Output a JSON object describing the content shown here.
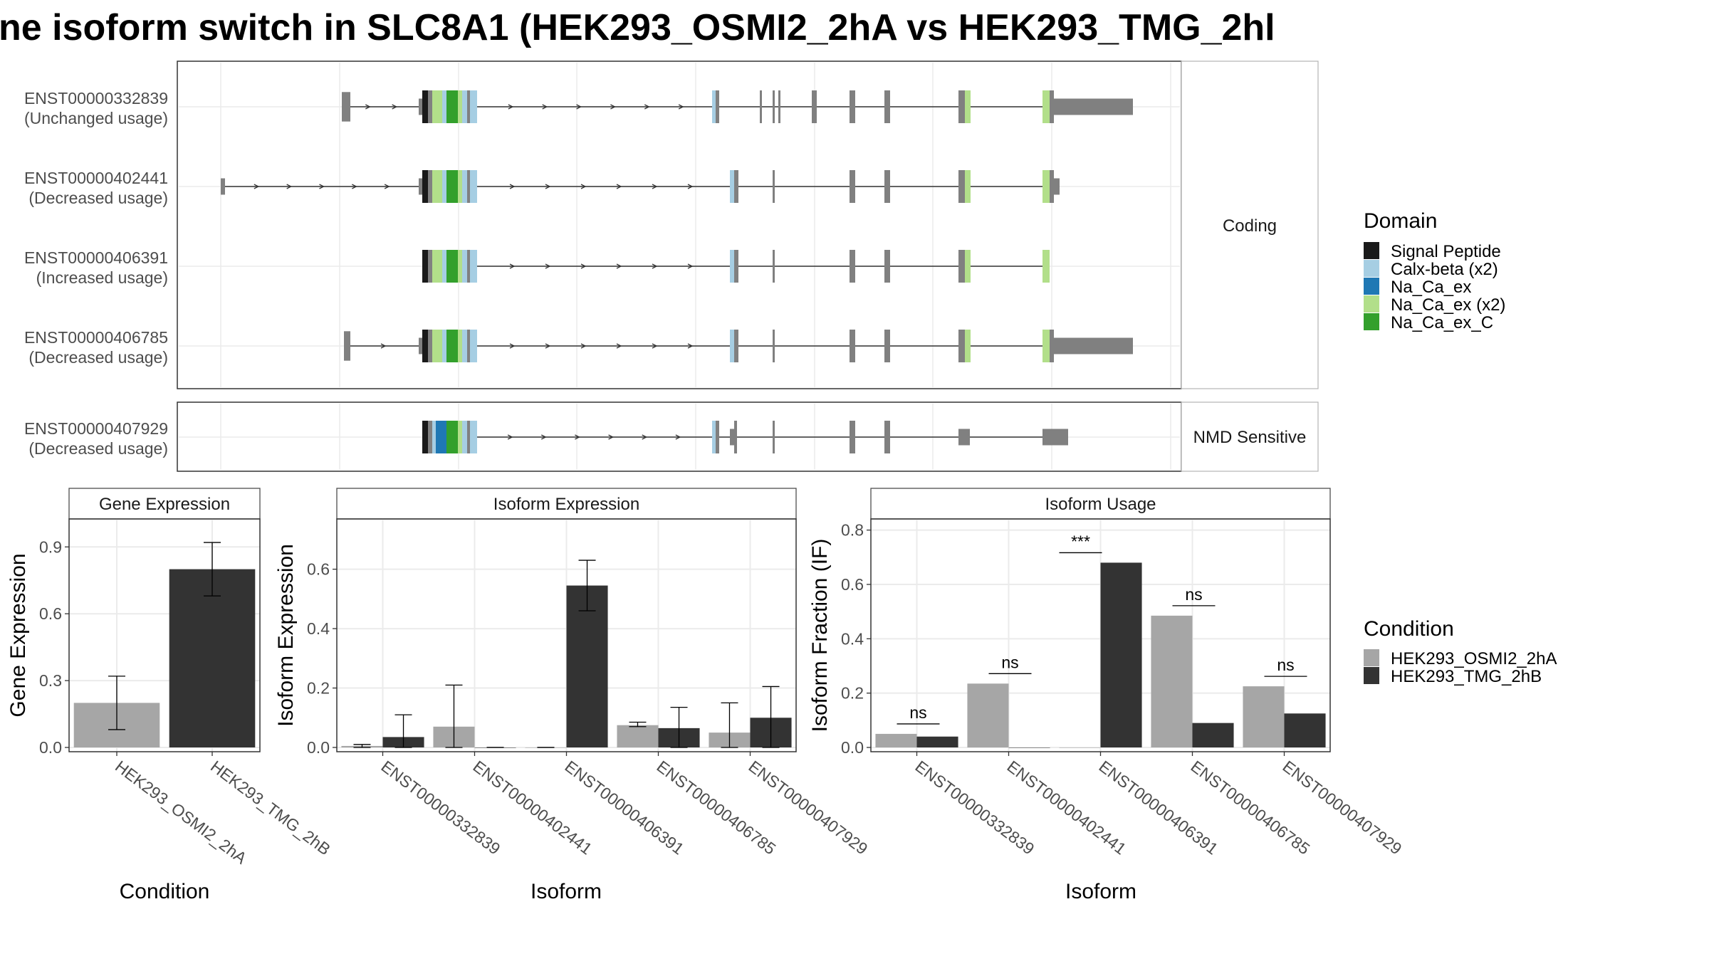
{
  "title": "ne isoform switch in SLC8A1 (HEK293_OSMI2_2hA vs HEK293_TMG_2hl",
  "colors": {
    "signal_peptide": "#1a1a1a",
    "calx_beta": "#a6cee3",
    "na_ca_ex": "#1f78b4",
    "na_ca_ex_x2": "#b2df8a",
    "na_ca_ex_c": "#33a02c",
    "exon": "#808080",
    "cond1": "#a6a6a6",
    "cond2": "#333333"
  },
  "transcripts": {
    "coding_label": "Coding",
    "nmd_label": "NMD Sensitive",
    "rows": [
      {
        "id": "ENST00000332839",
        "usage": "(Unchanged usage)",
        "group": "coding"
      },
      {
        "id": "ENST00000402441",
        "usage": "(Decreased usage)",
        "group": "coding"
      },
      {
        "id": "ENST00000406391",
        "usage": "(Increased usage)",
        "group": "coding"
      },
      {
        "id": "ENST00000406785",
        "usage": "(Decreased usage)",
        "group": "coding"
      },
      {
        "id": "ENST00000407929",
        "usage": "(Decreased usage)",
        "group": "nmd"
      }
    ]
  },
  "legend_domain": {
    "title": "Domain",
    "items": [
      "Signal Peptide",
      "Calx-beta (x2)",
      "Na_Ca_ex",
      "Na_Ca_ex (x2)",
      "Na_Ca_ex_C"
    ]
  },
  "legend_condition": {
    "title": "Condition",
    "items": [
      "HEK293_OSMI2_2hA",
      "HEK293_TMG_2hB"
    ]
  },
  "chart_data": [
    {
      "type": "bar",
      "title": "Gene Expression",
      "xlabel": "Condition",
      "ylabel": "Gene Expression",
      "categories": [
        "HEK293_OSMI2_2hA",
        "HEK293_TMG_2hB"
      ],
      "values": [
        0.2,
        0.8
      ],
      "error_low": [
        0.08,
        0.68
      ],
      "error_high": [
        0.32,
        0.92
      ],
      "ylim": [
        0,
        1.0
      ],
      "yticks": [
        "0.0",
        "0.3",
        "0.6",
        "0.9"
      ]
    },
    {
      "type": "bar",
      "title": "Isoform Expression",
      "xlabel": "Isoform",
      "ylabel": "Isoform Expression",
      "categories": [
        "ENST00000332839",
        "ENST00000402441",
        "ENST00000406391",
        "ENST00000406785",
        "ENST00000407929"
      ],
      "series": [
        {
          "name": "HEK293_OSMI2_2hA",
          "values": [
            0.005,
            0.07,
            0.0,
            0.075,
            0.05
          ],
          "error_low": [
            0.0,
            0.0,
            0.0,
            0.07,
            0.0
          ],
          "error_high": [
            0.01,
            0.21,
            0.0,
            0.085,
            0.15
          ]
        },
        {
          "name": "HEK293_TMG_2hB",
          "values": [
            0.035,
            0.0,
            0.545,
            0.065,
            0.1
          ],
          "error_low": [
            0.0,
            0.0,
            0.46,
            0.0,
            0.0
          ],
          "error_high": [
            0.11,
            0.0,
            0.63,
            0.135,
            0.205
          ]
        }
      ],
      "ylim": [
        0,
        0.75
      ],
      "yticks": [
        "0.0",
        "0.2",
        "0.4",
        "0.6"
      ]
    },
    {
      "type": "bar",
      "title": "Isoform Usage",
      "xlabel": "Isoform",
      "ylabel": "Isoform Fraction (IF)",
      "categories": [
        "ENST00000332839",
        "ENST00000402441",
        "ENST00000406391",
        "ENST00000406785",
        "ENST00000407929"
      ],
      "series": [
        {
          "name": "HEK293_OSMI2_2hA",
          "values": [
            0.05,
            0.235,
            0.0,
            0.485,
            0.225
          ]
        },
        {
          "name": "HEK293_TMG_2hB",
          "values": [
            0.04,
            0.0,
            0.68,
            0.09,
            0.125
          ]
        }
      ],
      "significance": [
        "ns",
        "ns",
        "***",
        "ns",
        "ns"
      ],
      "ylim": [
        0,
        0.82
      ],
      "yticks": [
        "0.0",
        "0.2",
        "0.4",
        "0.6",
        "0.8"
      ]
    }
  ]
}
